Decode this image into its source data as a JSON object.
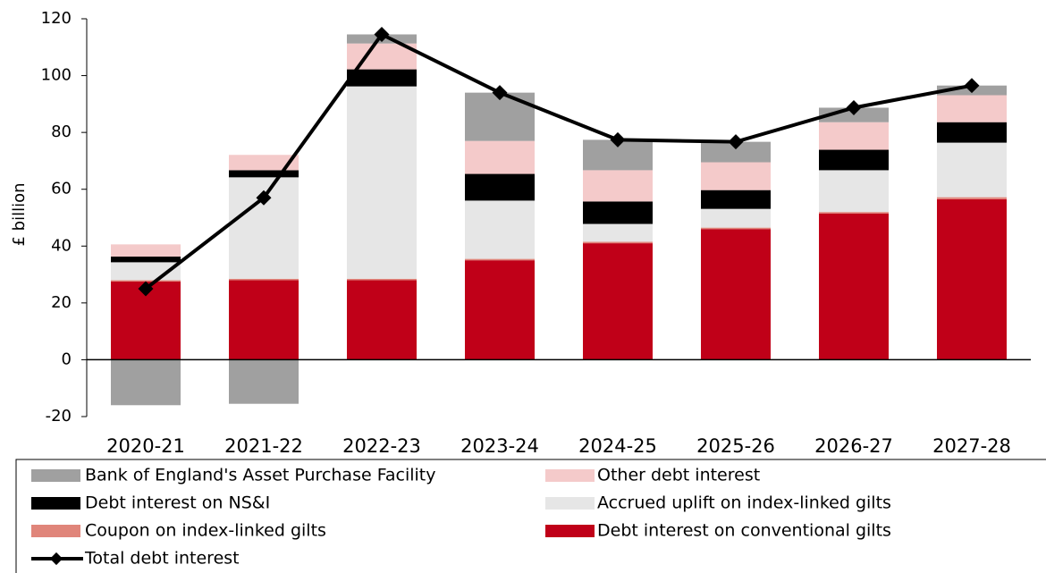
{
  "chart_data": {
    "type": "bar",
    "stacked": true,
    "y_label": "£ billion",
    "categories": [
      "2020-21",
      "2021-22",
      "2022-23",
      "2023-24",
      "2024-25",
      "2025-26",
      "2026-27",
      "2027-28"
    ],
    "ylim": [
      -20,
      120
    ],
    "yticks": [
      -20,
      0,
      20,
      40,
      60,
      80,
      100,
      120
    ],
    "series": [
      {
        "name": "Bank of England's Asset Purchase Facility",
        "color": "#a0a0a0",
        "values": [
          -16,
          -15.5,
          3.2,
          17,
          10.7,
          7.2,
          5.1,
          3.4
        ]
      },
      {
        "name": "Other debt interest",
        "color": "#f4caca",
        "values": [
          4.3,
          5.4,
          9.1,
          11.6,
          11,
          9.8,
          9.7,
          9.5
        ]
      },
      {
        "name": "Debt interest on NS&I",
        "color": "#000000",
        "values": [
          2,
          2.5,
          6,
          9.4,
          7.9,
          6.6,
          7.2,
          7.2
        ]
      },
      {
        "name": "Accrued uplift on index-linked gilts",
        "color": "#e6e6e6",
        "values": [
          6.3,
          35.7,
          67.7,
          20.5,
          6.3,
          6.6,
          14.7,
          19.2
        ]
      },
      {
        "name": "Coupon on index-linked gilts",
        "color": "#e0857a",
        "values": [
          0.5,
          0.5,
          0.5,
          0.5,
          0.5,
          0.5,
          0.5,
          0.7
        ]
      },
      {
        "name": "Debt interest on conventional gilts",
        "color": "#c00018",
        "values": [
          27.5,
          28,
          28,
          35,
          41,
          46,
          51.5,
          56.5
        ]
      },
      {
        "name": "Total debt interest",
        "type": "line",
        "color": "#000000",
        "values": [
          25,
          57,
          114.5,
          94,
          77.4,
          76.7,
          88.7,
          96.5
        ]
      }
    ]
  }
}
